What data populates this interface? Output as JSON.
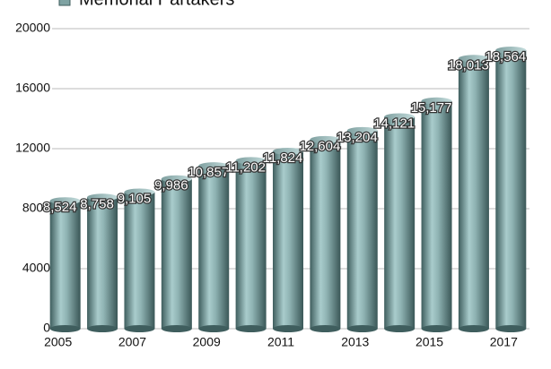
{
  "chart_data": {
    "type": "bar",
    "categories": [
      "2005",
      null,
      "2007",
      null,
      "2009",
      null,
      "2011",
      null,
      "2013",
      null,
      "2015",
      null,
      "2017"
    ],
    "series": [
      {
        "name": "Memorial Partakers",
        "color": "#7fa3a3",
        "values": [
          8524,
          8758,
          9105,
          9986,
          10857,
          11202,
          11824,
          12604,
          13204,
          14121,
          15177,
          18013,
          18564
        ],
        "value_labels": [
          "8,524",
          "8,758",
          "9,105",
          "9,986",
          "10,857",
          "11,202",
          "11,824",
          "12,604",
          "13,204",
          "14,121",
          "15,177",
          "18,013",
          "18,564"
        ]
      }
    ],
    "ylim": [
      0,
      20000
    ],
    "yticks": [
      0,
      4000,
      8000,
      12000,
      16000,
      20000
    ],
    "grid": true,
    "legend": "top"
  }
}
